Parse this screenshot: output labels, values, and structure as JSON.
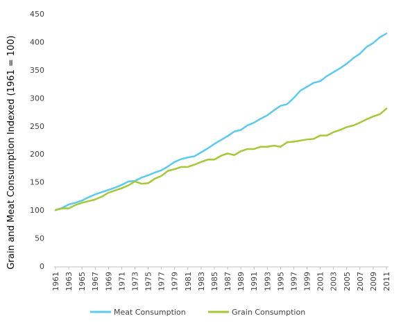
{
  "chart_data": {
    "type": "line",
    "title": "",
    "xlabel": "",
    "ylabel": "Grain and Meat Consumption Indexed (1961 = 100)",
    "ylim": [
      0,
      450
    ],
    "yticks": [
      0,
      50,
      100,
      150,
      200,
      250,
      300,
      350,
      400,
      450
    ],
    "grid": false,
    "legend_position": "bottom",
    "x": [
      1961,
      1962,
      1963,
      1964,
      1965,
      1966,
      1967,
      1968,
      1969,
      1970,
      1971,
      1972,
      1973,
      1974,
      1975,
      1976,
      1977,
      1978,
      1979,
      1980,
      1981,
      1982,
      1983,
      1984,
      1985,
      1986,
      1987,
      1988,
      1989,
      1990,
      1991,
      1992,
      1993,
      1994,
      1995,
      1996,
      1997,
      1998,
      1999,
      2000,
      2001,
      2002,
      2003,
      2004,
      2005,
      2006,
      2007,
      2008,
      2009,
      2010,
      2011
    ],
    "xtick_labels": [
      "1961",
      "1963",
      "1965",
      "1967",
      "1969",
      "1971",
      "1973",
      "1975",
      "1977",
      "1979",
      "1981",
      "1983",
      "1985",
      "1987",
      "1989",
      "1991",
      "1993",
      "1995",
      "1997",
      "1999",
      "2001",
      "2003",
      "2005",
      "2007",
      "2009",
      "2011"
    ],
    "series": [
      {
        "name": "Meat Consumption",
        "color": "#5bcaf0",
        "values": [
          100,
          104,
          110,
          113,
          117,
          123,
          128,
          132,
          136,
          140,
          145,
          151,
          152,
          158,
          162,
          167,
          171,
          178,
          186,
          191,
          194,
          196,
          203,
          210,
          218,
          225,
          232,
          240,
          243,
          251,
          256,
          263,
          269,
          278,
          286,
          289,
          300,
          313,
          320,
          327,
          330,
          339,
          346,
          353,
          361,
          371,
          379,
          391,
          398,
          408,
          415
        ]
      },
      {
        "name": "Grain Consumption",
        "color": "#a4c836",
        "values": [
          100,
          103,
          103,
          109,
          113,
          116,
          119,
          124,
          131,
          135,
          139,
          144,
          151,
          147,
          148,
          156,
          161,
          170,
          173,
          177,
          177,
          181,
          186,
          190,
          190,
          197,
          201,
          198,
          205,
          209,
          209,
          213,
          213,
          215,
          213,
          221,
          222,
          224,
          226,
          227,
          233,
          233,
          239,
          243,
          248,
          251,
          256,
          262,
          267,
          271,
          281
        ]
      }
    ]
  }
}
